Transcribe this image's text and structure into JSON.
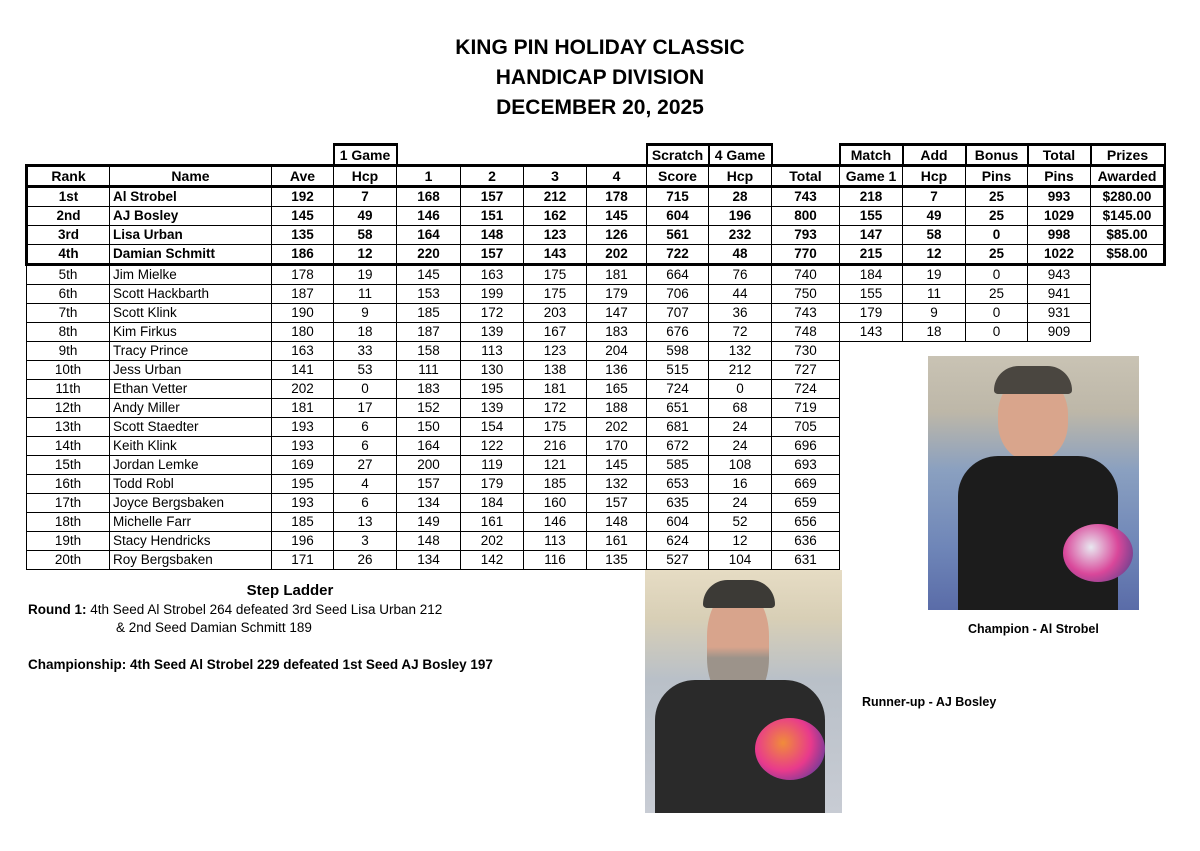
{
  "header": {
    "line1": "KING PIN HOLIDAY CLASSIC",
    "line2": "HANDICAP DIVISION",
    "line3": "DECEMBER 20, 2025"
  },
  "table": {
    "columns_top": [
      "",
      "",
      "",
      "1 Game",
      "",
      "",
      "",
      "",
      "Scratch",
      "4 Game",
      "",
      "Match",
      "Add",
      "Bonus",
      "Total",
      "Prizes"
    ],
    "columns": [
      "Rank",
      "Name",
      "Ave",
      "Hcp",
      "1",
      "2",
      "3",
      "4",
      "Score",
      "Hcp",
      "Total",
      "Game 1",
      "Hcp",
      "Pins",
      "Pins",
      "Awarded"
    ],
    "rows": [
      [
        "1st",
        "Al Strobel",
        "192",
        "7",
        "168",
        "157",
        "212",
        "178",
        "715",
        "28",
        "743",
        "218",
        "7",
        "25",
        "993",
        "$280.00"
      ],
      [
        "2nd",
        "AJ Bosley",
        "145",
        "49",
        "146",
        "151",
        "162",
        "145",
        "604",
        "196",
        "800",
        "155",
        "49",
        "25",
        "1029",
        "$145.00"
      ],
      [
        "3rd",
        "Lisa Urban",
        "135",
        "58",
        "164",
        "148",
        "123",
        "126",
        "561",
        "232",
        "793",
        "147",
        "58",
        "0",
        "998",
        "$85.00"
      ],
      [
        "4th",
        "Damian Schmitt",
        "186",
        "12",
        "220",
        "157",
        "143",
        "202",
        "722",
        "48",
        "770",
        "215",
        "12",
        "25",
        "1022",
        "$58.00"
      ],
      [
        "5th",
        "Jim Mielke",
        "178",
        "19",
        "145",
        "163",
        "175",
        "181",
        "664",
        "76",
        "740",
        "184",
        "19",
        "0",
        "943"
      ],
      [
        "6th",
        "Scott Hackbarth",
        "187",
        "11",
        "153",
        "199",
        "175",
        "179",
        "706",
        "44",
        "750",
        "155",
        "11",
        "25",
        "941"
      ],
      [
        "7th",
        "Scott Klink",
        "190",
        "9",
        "185",
        "172",
        "203",
        "147",
        "707",
        "36",
        "743",
        "179",
        "9",
        "0",
        "931"
      ],
      [
        "8th",
        "Kim Firkus",
        "180",
        "18",
        "187",
        "139",
        "167",
        "183",
        "676",
        "72",
        "748",
        "143",
        "18",
        "0",
        "909"
      ],
      [
        "9th",
        "Tracy Prince",
        "163",
        "33",
        "158",
        "113",
        "123",
        "204",
        "598",
        "132",
        "730"
      ],
      [
        "10th",
        "Jess Urban",
        "141",
        "53",
        "111",
        "130",
        "138",
        "136",
        "515",
        "212",
        "727"
      ],
      [
        "11th",
        "Ethan Vetter",
        "202",
        "0",
        "183",
        "195",
        "181",
        "165",
        "724",
        "0",
        "724"
      ],
      [
        "12th",
        "Andy Miller",
        "181",
        "17",
        "152",
        "139",
        "172",
        "188",
        "651",
        "68",
        "719"
      ],
      [
        "13th",
        "Scott Staedter",
        "193",
        "6",
        "150",
        "154",
        "175",
        "202",
        "681",
        "24",
        "705"
      ],
      [
        "14th",
        "Keith Klink",
        "193",
        "6",
        "164",
        "122",
        "216",
        "170",
        "672",
        "24",
        "696"
      ],
      [
        "15th",
        "Jordan Lemke",
        "169",
        "27",
        "200",
        "119",
        "121",
        "145",
        "585",
        "108",
        "693"
      ],
      [
        "16th",
        "Todd Robl",
        "195",
        "4",
        "157",
        "179",
        "185",
        "132",
        "653",
        "16",
        "669"
      ],
      [
        "17th",
        "Joyce Bergsbaken",
        "193",
        "6",
        "134",
        "184",
        "160",
        "157",
        "635",
        "24",
        "659"
      ],
      [
        "18th",
        "Michelle Farr",
        "185",
        "13",
        "149",
        "161",
        "146",
        "148",
        "604",
        "52",
        "656"
      ],
      [
        "19th",
        "Stacy Hendricks",
        "196",
        "3",
        "148",
        "202",
        "113",
        "161",
        "624",
        "12",
        "636"
      ],
      [
        "20th",
        "Roy Bergsbaken",
        "171",
        "26",
        "134",
        "142",
        "116",
        "135",
        "527",
        "104",
        "631"
      ]
    ]
  },
  "step_ladder": {
    "title": "Step Ladder",
    "round1_label": "Round 1:",
    "round1_text": "4th Seed Al Strobel 264 defeated 3rd Seed Lisa Urban 212",
    "round1_cont": "& 2nd Seed Damian Schmitt 189",
    "championship": "Championship: 4th Seed Al Strobel 229 defeated 1st Seed AJ Bosley 197"
  },
  "photos": {
    "champion_caption": "Champion - Al Strobel",
    "runnerup_caption": "Runner-up - AJ Bosley"
  }
}
